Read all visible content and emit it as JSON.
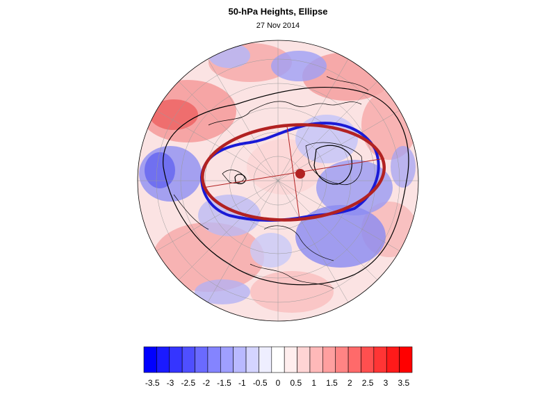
{
  "header": {
    "title": "50-hPa Heights, Ellipse",
    "subtitle": "27 Nov 2014"
  },
  "map": {
    "projection": "polar stereographic, north pole centered",
    "anomaly_field": "50-hPa height anomaly shading",
    "contours": [
      "black height contours",
      "blue height contour"
    ],
    "ellipse": {
      "color": "#b22222",
      "description": "fitted ellipse with major/minor axes and center dot"
    },
    "blue_contour_color": "#1a1ad6",
    "warm_color": "#ff0000",
    "cool_color": "#0000ff"
  },
  "colorbar": {
    "colors": [
      "#0000ff",
      "#1a1aff",
      "#3535ff",
      "#4f4fff",
      "#6a6aff",
      "#8484ff",
      "#9f9fff",
      "#b9b9ff",
      "#d4d4ff",
      "#eeeeff",
      "#ffffff",
      "#ffeeee",
      "#ffd4d4",
      "#ffb9b9",
      "#ff9f9f",
      "#ff8484",
      "#ff6a6a",
      "#ff4f4f",
      "#ff3535",
      "#ff1a1a",
      "#ff0000"
    ],
    "labels": [
      "-3.5",
      "-3",
      "-2.5",
      "-2",
      "-1.5",
      "-1",
      "-0.5",
      "0",
      "0.5",
      "1",
      "1.5",
      "2",
      "2.5",
      "3",
      "3.5"
    ]
  }
}
